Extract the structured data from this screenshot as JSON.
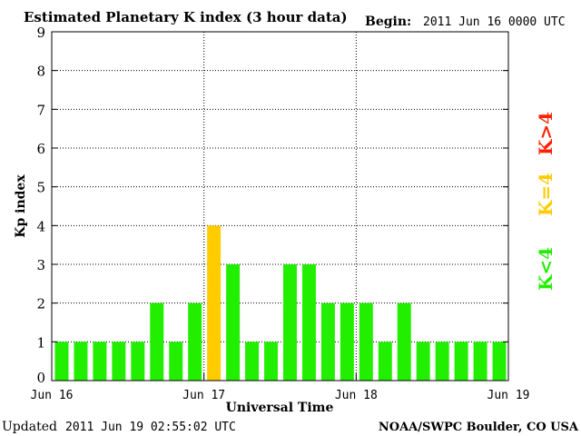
{
  "header": {
    "title": "Estimated Planetary K index (3 hour data)",
    "begin_label": "Begin:",
    "begin_value": "2011 Jun 16 0000 UTC"
  },
  "footer": {
    "updated_label": "Updated",
    "updated_value": "2011 Jun 19 02:55:02 UTC",
    "source": "NOAA/SWPC Boulder, CO USA"
  },
  "legend": [
    {
      "label": "K<4",
      "color": "#22ee00"
    },
    {
      "label": "K=4",
      "color": "#ffcc00"
    },
    {
      "label": "K>4",
      "color": "#ff2200"
    }
  ],
  "chart_data": {
    "type": "bar",
    "title": "Estimated Planetary K index (3 hour data)",
    "xlabel": "Universal Time",
    "ylabel": "Kp index",
    "ylim": [
      0,
      9
    ],
    "yticks": [
      "0",
      "1",
      "2",
      "3",
      "4",
      "5",
      "6",
      "7",
      "8",
      "9"
    ],
    "xticks": [
      "Jun 16",
      "Jun 17",
      "Jun 18",
      "Jun 19"
    ],
    "grid": true,
    "values": [
      1,
      1,
      1,
      1,
      1,
      2,
      1,
      2,
      4,
      3,
      1,
      1,
      3,
      3,
      2,
      2,
      2,
      1,
      2,
      1,
      1,
      1,
      1,
      1
    ],
    "colors": {
      "low": "#22ee00",
      "equal": "#ffcc00",
      "high": "#ff2200"
    }
  }
}
